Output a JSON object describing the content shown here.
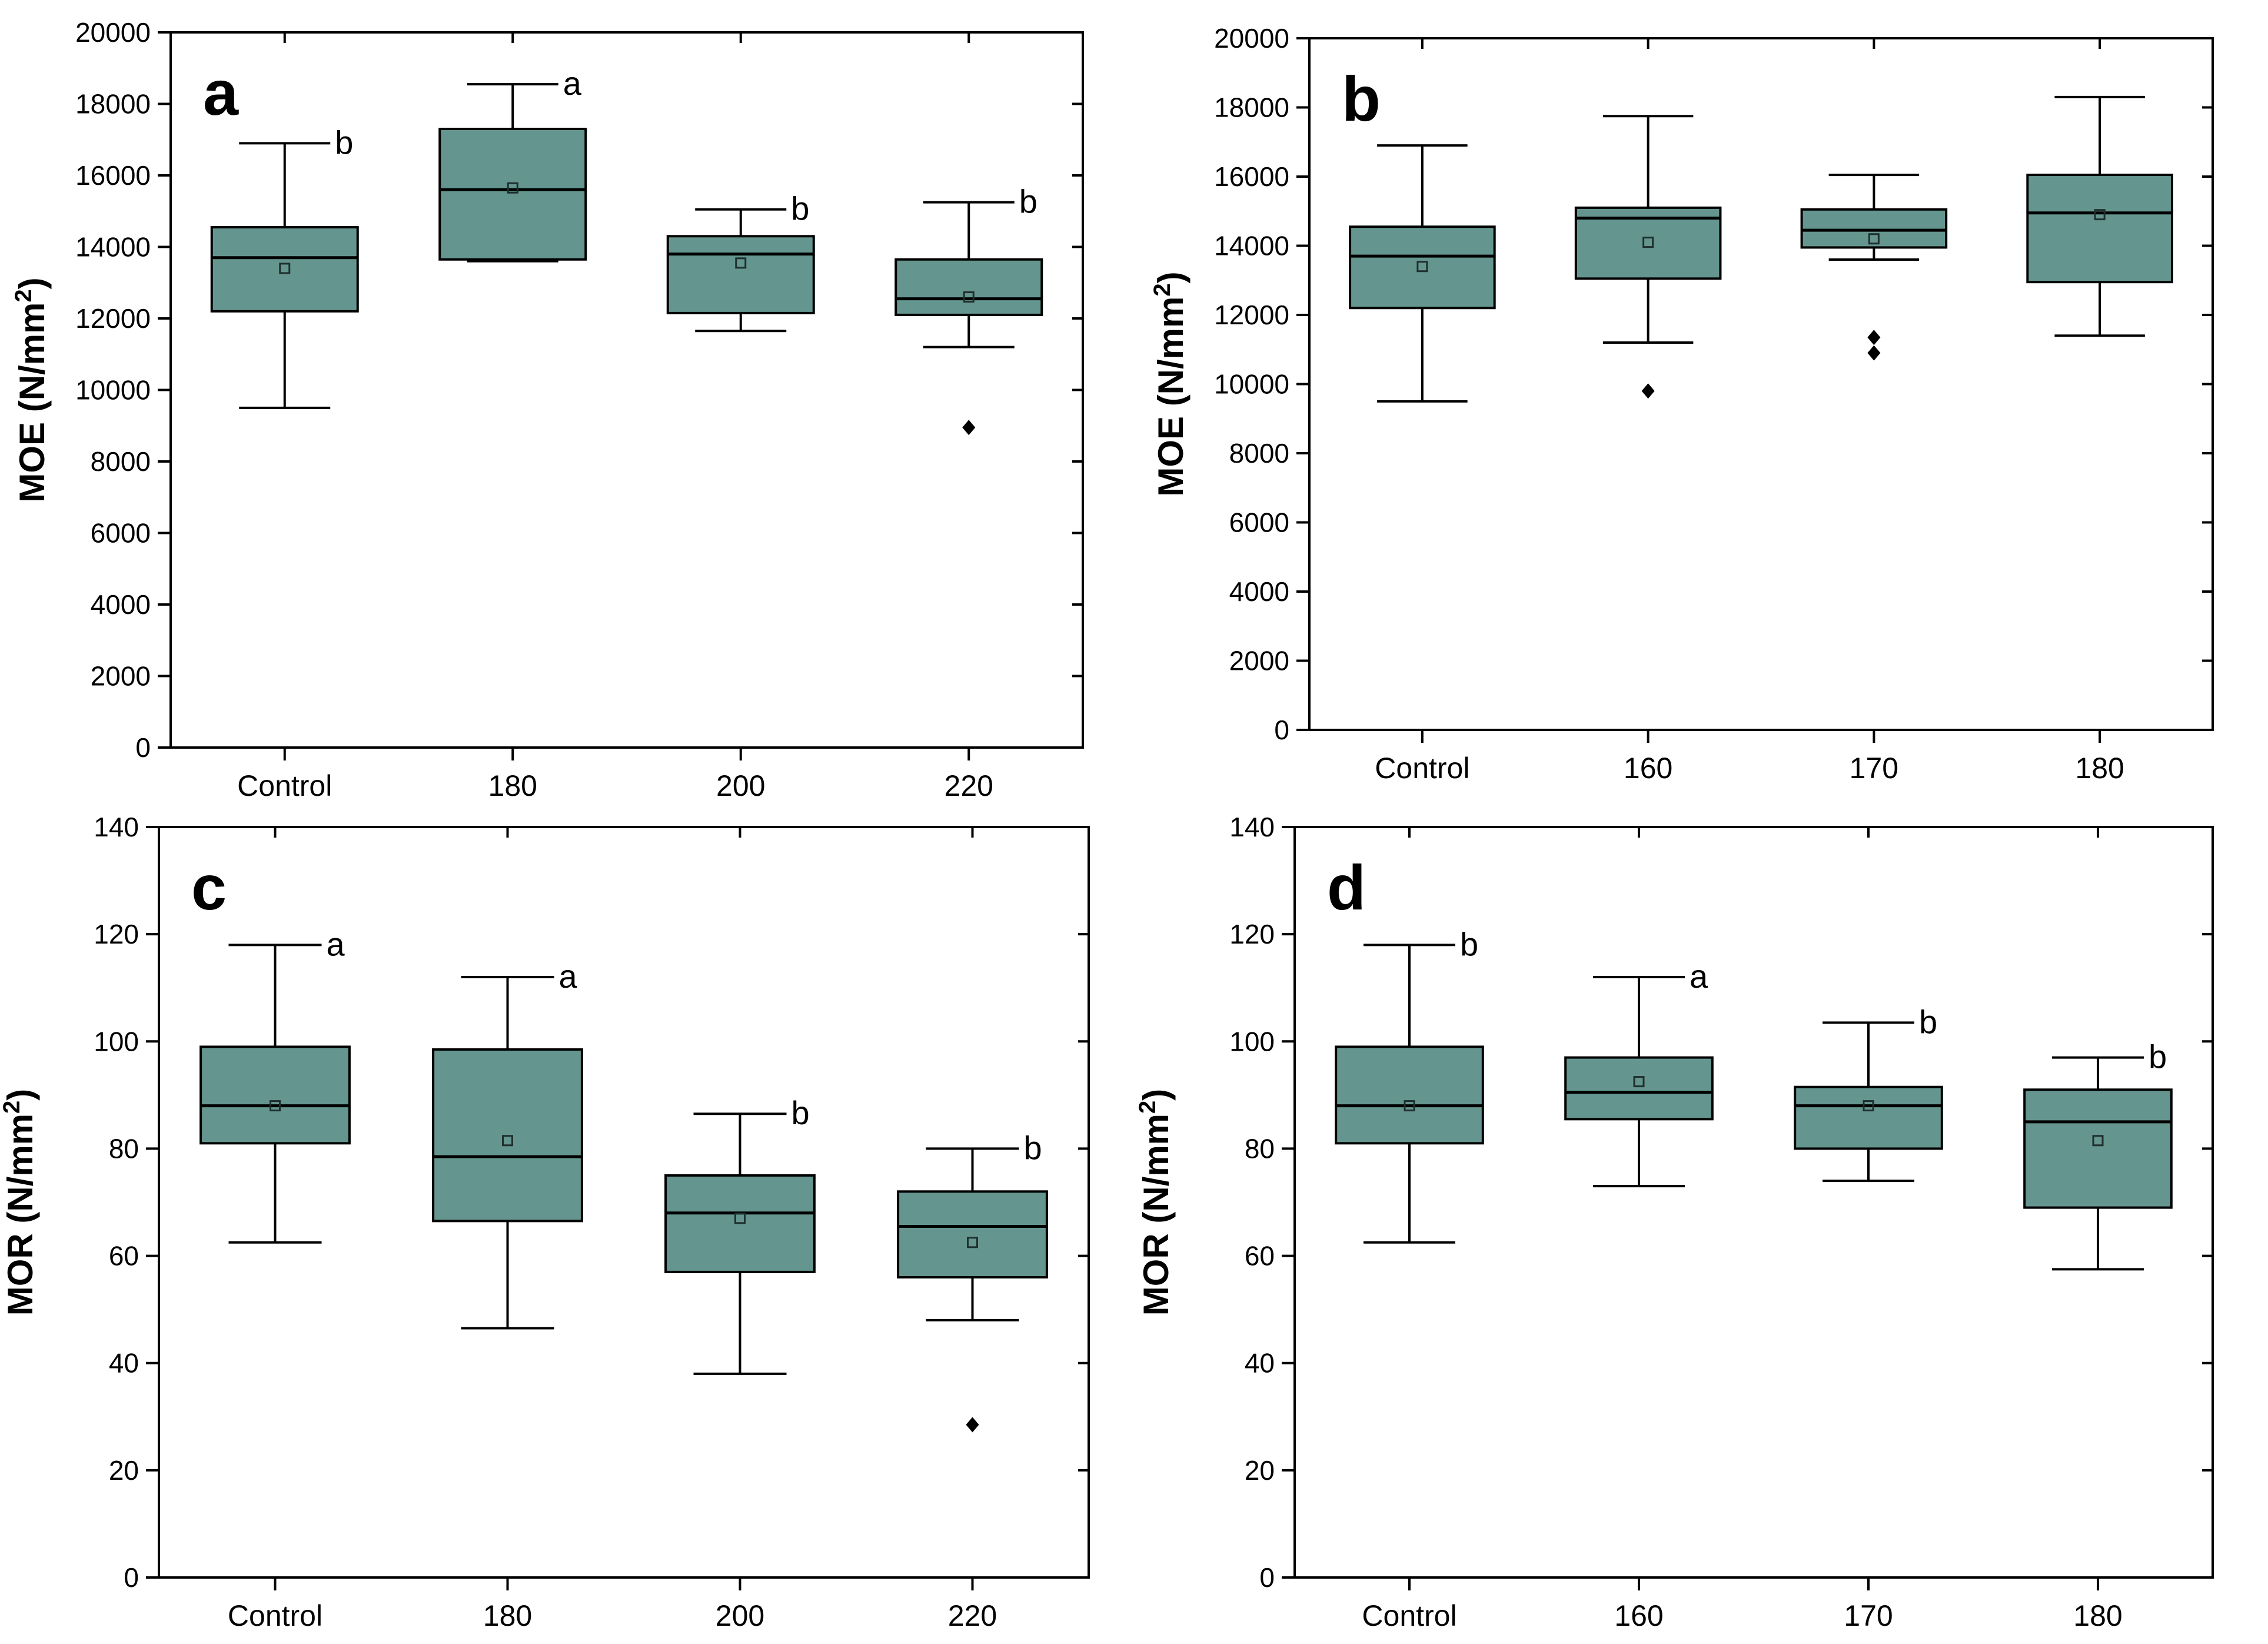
{
  "style": {
    "box_fill": "#64968F",
    "line_color": "#000000",
    "background": "#ffffff"
  },
  "chart_data": [
    {
      "type": "box",
      "panel_label": "a",
      "ylabel": "MOE (N/mm",
      "ylabel_sup": "2",
      "ylabel_close": ")",
      "ylim": [
        0,
        20000
      ],
      "yticks": [
        0,
        2000,
        4000,
        6000,
        8000,
        10000,
        12000,
        14000,
        16000,
        18000,
        20000
      ],
      "grid": false,
      "categories": [
        "Control",
        "180",
        "200",
        "220"
      ],
      "boxes": [
        {
          "min": 9500,
          "q1": 12200,
          "median": 13700,
          "q3": 14550,
          "max": 16900,
          "mean": 13400,
          "outliers": [],
          "sig": "b"
        },
        {
          "min": 13600,
          "q1": 13650,
          "median": 15600,
          "q3": 17300,
          "max": 18550,
          "mean": 15650,
          "outliers": [],
          "sig": "a"
        },
        {
          "min": 11650,
          "q1": 12150,
          "median": 13800,
          "q3": 14300,
          "max": 15050,
          "mean": 13550,
          "outliers": [],
          "sig": "b"
        },
        {
          "min": 11200,
          "q1": 12100,
          "median": 12550,
          "q3": 13650,
          "max": 15250,
          "mean": 12600,
          "outliers": [
            8950
          ],
          "sig": "b"
        }
      ]
    },
    {
      "type": "box",
      "panel_label": "b",
      "ylabel": "MOE (N/mm",
      "ylabel_sup": "2",
      "ylabel_close": ")",
      "ylim": [
        0,
        20000
      ],
      "yticks": [
        0,
        2000,
        4000,
        6000,
        8000,
        10000,
        12000,
        14000,
        16000,
        18000,
        20000
      ],
      "grid": false,
      "categories": [
        "Control",
        "160",
        "170",
        "180"
      ],
      "boxes": [
        {
          "min": 9500,
          "q1": 12200,
          "median": 13700,
          "q3": 14550,
          "max": 16900,
          "mean": 13400,
          "outliers": [],
          "sig": ""
        },
        {
          "min": 11200,
          "q1": 13050,
          "median": 14800,
          "q3": 15100,
          "max": 17750,
          "mean": 14100,
          "outliers": [
            9800
          ],
          "sig": ""
        },
        {
          "min": 13600,
          "q1": 13950,
          "median": 14450,
          "q3": 15050,
          "max": 16050,
          "mean": 14200,
          "outliers": [
            11350,
            10900
          ],
          "sig": ""
        },
        {
          "min": 11400,
          "q1": 12950,
          "median": 14950,
          "q3": 16050,
          "max": 18300,
          "mean": 14900,
          "outliers": [],
          "sig": ""
        }
      ]
    },
    {
      "type": "box",
      "panel_label": "c",
      "ylabel": "MOR (N/mm",
      "ylabel_sup": "2",
      "ylabel_close": ")",
      "ylim": [
        0,
        140
      ],
      "yticks": [
        0,
        20,
        40,
        60,
        80,
        100,
        120,
        140
      ],
      "grid": false,
      "categories": [
        "Control",
        "180",
        "200",
        "220"
      ],
      "boxes": [
        {
          "min": 62.5,
          "q1": 81,
          "median": 88,
          "q3": 99,
          "max": 118,
          "mean": 88,
          "outliers": [],
          "sig": "a"
        },
        {
          "min": 46.5,
          "q1": 66.5,
          "median": 78.5,
          "q3": 98.5,
          "max": 112,
          "mean": 81.5,
          "outliers": [],
          "sig": "a"
        },
        {
          "min": 38,
          "q1": 57,
          "median": 68,
          "q3": 75,
          "max": 86.5,
          "mean": 67,
          "outliers": [],
          "sig": "b"
        },
        {
          "min": 48,
          "q1": 56,
          "median": 65.5,
          "q3": 72,
          "max": 80,
          "mean": 62.5,
          "outliers": [
            28.5
          ],
          "sig": "b"
        }
      ]
    },
    {
      "type": "box",
      "panel_label": "d",
      "ylabel": "MOR (N/mm",
      "ylabel_sup": "2",
      "ylabel_close": ")",
      "ylim": [
        0,
        140
      ],
      "yticks": [
        0,
        20,
        40,
        60,
        80,
        100,
        120,
        140
      ],
      "grid": false,
      "categories": [
        "Control",
        "160",
        "170",
        "180"
      ],
      "boxes": [
        {
          "min": 62.5,
          "q1": 81,
          "median": 88,
          "q3": 99,
          "max": 118,
          "mean": 88,
          "outliers": [],
          "sig": "b"
        },
        {
          "min": 73,
          "q1": 85.5,
          "median": 90.5,
          "q3": 97,
          "max": 112,
          "mean": 92.5,
          "outliers": [],
          "sig": "a"
        },
        {
          "min": 74,
          "q1": 80,
          "median": 88,
          "q3": 91.5,
          "max": 103.5,
          "mean": 88,
          "outliers": [],
          "sig": "b"
        },
        {
          "min": 57.5,
          "q1": 69,
          "median": 85,
          "q3": 91,
          "max": 97,
          "mean": 81.5,
          "outliers": [],
          "sig": "b"
        }
      ]
    }
  ]
}
